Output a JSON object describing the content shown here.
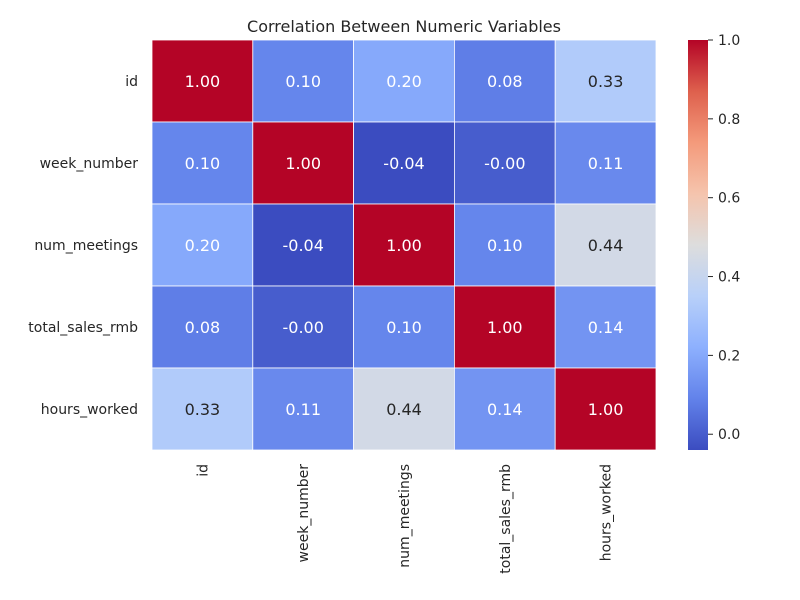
{
  "chart_data": {
    "type": "heatmap",
    "title": "Correlation Between Numeric Variables",
    "xlabel": "",
    "ylabel": "",
    "row_labels": [
      "id",
      "week_number",
      "num_meetings",
      "total_sales_rmb",
      "hours_worked"
    ],
    "col_labels": [
      "id",
      "week_number",
      "num_meetings",
      "total_sales_rmb",
      "hours_worked"
    ],
    "values": [
      [
        1.0,
        0.1,
        0.2,
        0.08,
        0.33
      ],
      [
        0.1,
        1.0,
        -0.04,
        -0.0,
        0.11
      ],
      [
        0.2,
        -0.04,
        1.0,
        0.1,
        0.44
      ],
      [
        0.08,
        -0.0,
        0.1,
        1.0,
        0.14
      ],
      [
        0.33,
        0.11,
        0.44,
        0.14,
        1.0
      ]
    ],
    "cell_labels": [
      [
        "1.00",
        "0.10",
        "0.20",
        "0.08",
        "0.33"
      ],
      [
        "0.10",
        "1.00",
        "-0.04",
        "-0.00",
        "0.11"
      ],
      [
        "0.20",
        "-0.04",
        "1.00",
        "0.10",
        "0.44"
      ],
      [
        "0.08",
        "-0.00",
        "0.10",
        "1.00",
        "0.14"
      ],
      [
        "0.33",
        "0.11",
        "0.44",
        "0.14",
        "1.00"
      ]
    ],
    "colormap": "coolwarm",
    "vmin": -0.04,
    "vmax": 1.0,
    "colorbar": {
      "ticks": [
        0.0,
        0.2,
        0.4,
        0.6,
        0.8,
        1.0
      ],
      "tick_labels": [
        "0.0",
        "0.2",
        "0.4",
        "0.6",
        "0.8",
        "1.0"
      ],
      "placement": "right"
    },
    "grid_lines": true,
    "grid_color": "#ffffff"
  }
}
